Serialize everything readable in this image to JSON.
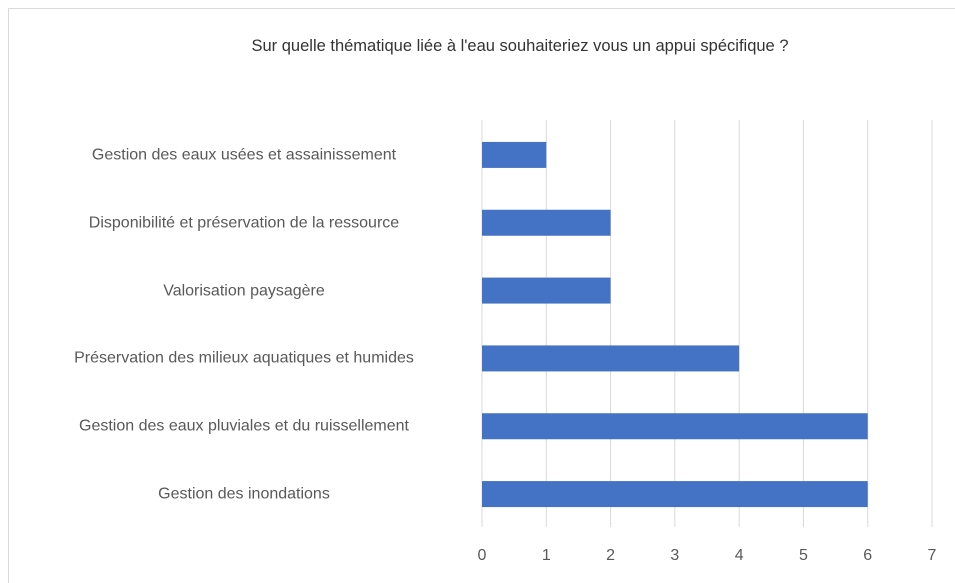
{
  "chart_data": {
    "type": "bar",
    "orientation": "horizontal",
    "title": "Sur quelle thématique liée à l'eau souhaiteriez vous un appui spécifique ?",
    "categories": [
      "Gestion des eaux usées et assainissement",
      "Disponibilité et préservation de la ressource",
      "Valorisation paysagère",
      "Préservation des milieux aquatiques et humides",
      "Gestion des eaux pluviales et du ruissellement",
      "Gestion des inondations"
    ],
    "values": [
      1,
      2,
      2,
      4,
      6,
      6
    ],
    "color": "#4472c4",
    "xlim": [
      0,
      7
    ],
    "xticks": [
      0,
      1,
      2,
      3,
      4,
      5,
      6,
      7
    ],
    "grid": true
  }
}
